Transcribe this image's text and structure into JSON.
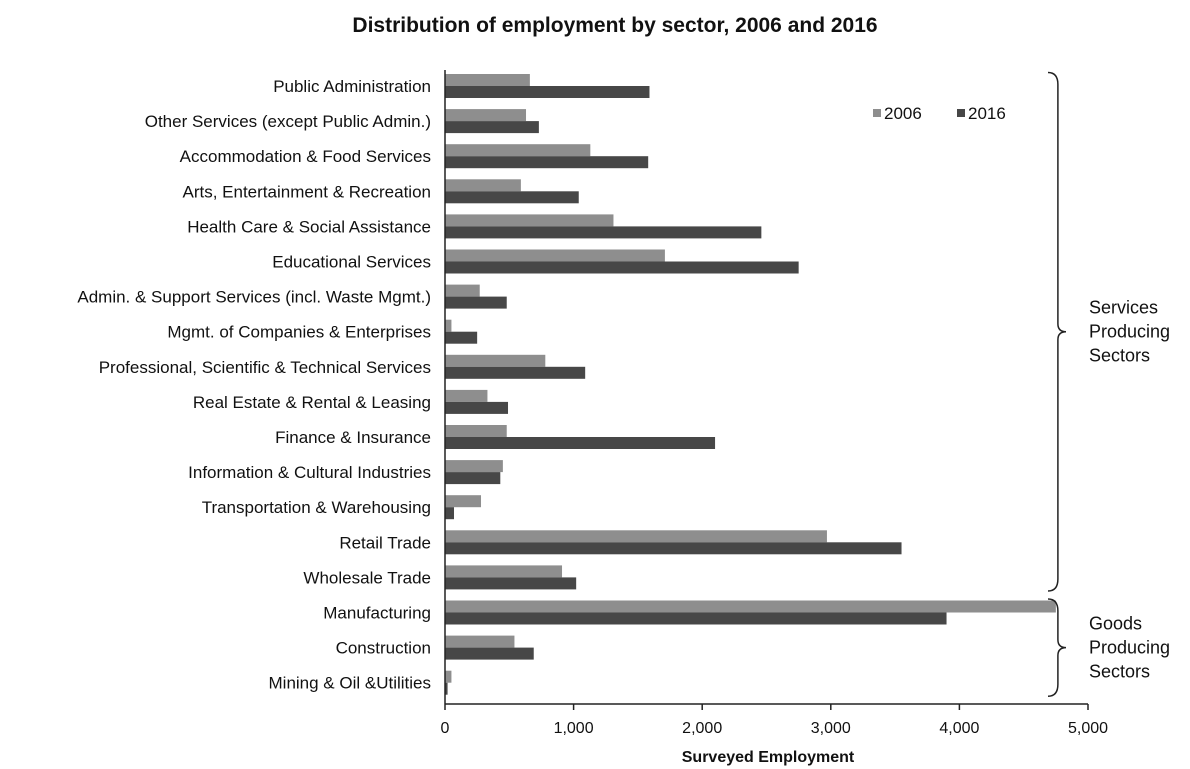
{
  "chart_data": {
    "type": "bar",
    "orientation": "horizontal",
    "title": "Distribution of employment by sector, 2006 and 2016",
    "xlabel": "Surveyed Employment",
    "ylabel": "",
    "xlim": [
      0,
      5000
    ],
    "xticks": [
      "0",
      "1,000",
      "2,000",
      "3,000",
      "4,000",
      "5,000"
    ],
    "xtick_values": [
      0,
      1000,
      2000,
      3000,
      4000,
      5000
    ],
    "legend_position": "top-right",
    "grid": false,
    "categories": [
      "Public Administration",
      "Other Services (except Public Admin.)",
      "Accommodation & Food Services",
      "Arts, Entertainment & Recreation",
      "Health Care & Social Assistance",
      "Educational Services",
      "Admin. & Support Services (incl. Waste Mgmt.)",
      "Mgmt. of Companies & Enterprises",
      "Professional, Scientific & Technical Services",
      "Real Estate & Rental & Leasing",
      "Finance & Insurance",
      "Information & Cultural Industries",
      "Transportation & Warehousing",
      "Retail Trade",
      "Wholesale Trade",
      "Manufacturing",
      "Construction",
      "Mining & Oil &Utilities"
    ],
    "series": [
      {
        "name": "2006",
        "color": "#8e8e8e",
        "values": [
          660,
          630,
          1130,
          590,
          1310,
          1710,
          270,
          50,
          780,
          330,
          480,
          450,
          280,
          2970,
          910,
          4750,
          540,
          50
        ]
      },
      {
        "name": "2016",
        "color": "#474747",
        "values": [
          1590,
          730,
          1580,
          1040,
          2460,
          2750,
          480,
          250,
          1090,
          490,
          2100,
          430,
          70,
          3550,
          1020,
          3900,
          690,
          20
        ]
      }
    ],
    "groups": [
      {
        "label_lines": [
          "Services",
          "Producing",
          "Sectors"
        ],
        "from_category": "Public Administration",
        "to_category": "Wholesale Trade"
      },
      {
        "label_lines": [
          "Goods",
          "Producing",
          "Sectors"
        ],
        "from_category": "Manufacturing",
        "to_category": "Mining & Oil &Utilities"
      }
    ]
  }
}
